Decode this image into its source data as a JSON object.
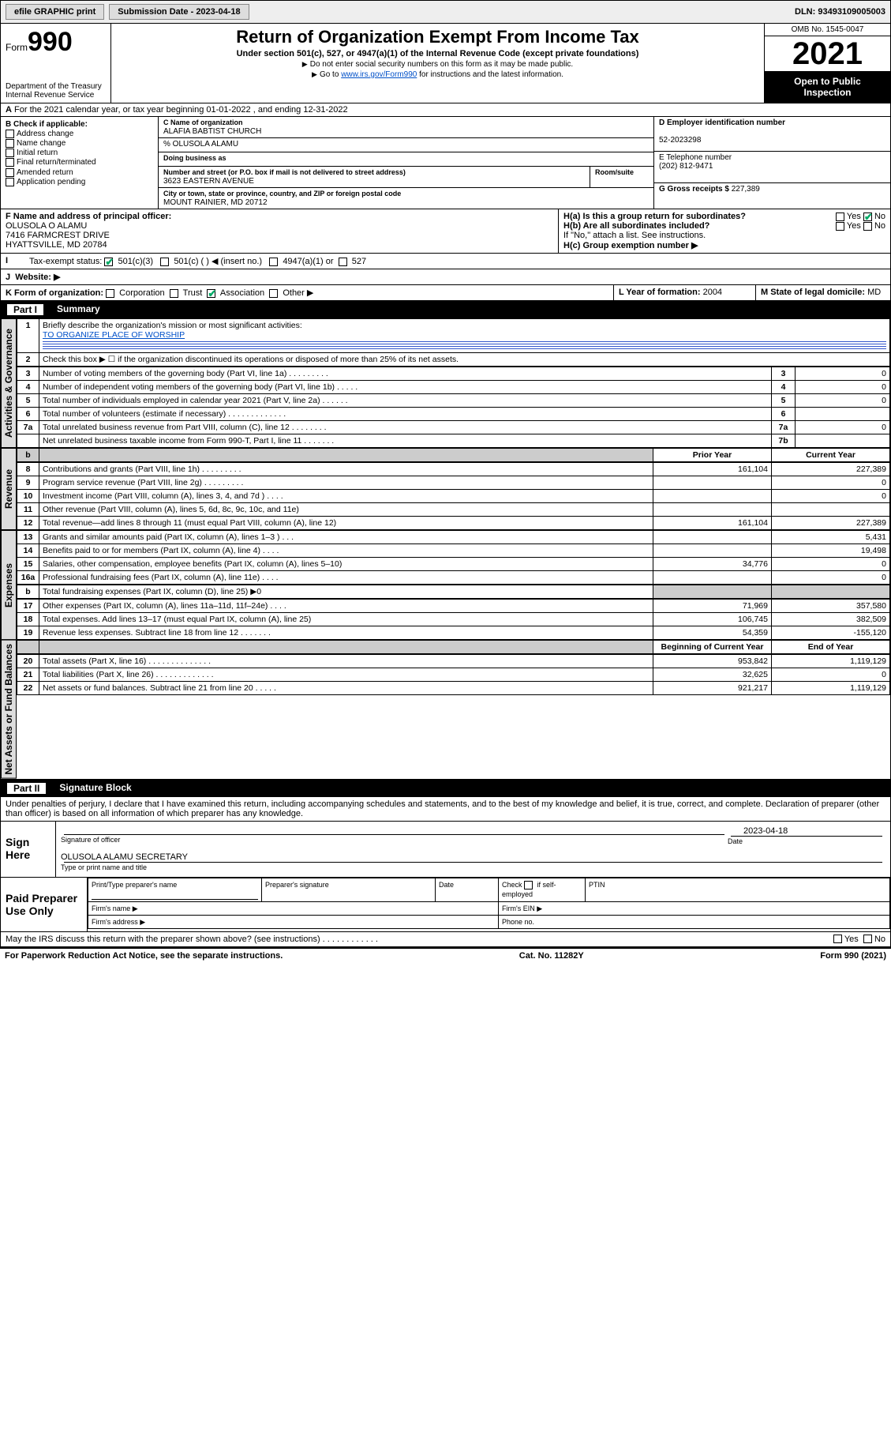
{
  "topbar": {
    "efile_label": "efile GRAPHIC print",
    "submission_label": "Submission Date - 2023-04-18",
    "dln_label": "DLN: 93493109005003"
  },
  "header": {
    "form_word": "Form",
    "form_num": "990",
    "title": "Return of Organization Exempt From Income Tax",
    "subtitle": "Under section 501(c), 527, or 4947(a)(1) of the Internal Revenue Code (except private foundations)",
    "note1": "Do not enter social security numbers on this form as it may be made public.",
    "note2_pre": "Go to ",
    "note2_link": "www.irs.gov/Form990",
    "note2_post": " for instructions and the latest information.",
    "dept": "Department of the Treasury",
    "irs": "Internal Revenue Service",
    "omb": "OMB No. 1545-0047",
    "year": "2021",
    "inspect1": "Open to Public",
    "inspect2": "Inspection"
  },
  "row_a": "For the 2021 calendar year, or tax year beginning 01-01-2022  , and ending 12-31-2022",
  "section_b": {
    "title": "B Check if applicable:",
    "items": [
      "Address change",
      "Name change",
      "Initial return",
      "Final return/terminated",
      "Amended return",
      "Application pending"
    ]
  },
  "section_c": {
    "name_lbl": "C Name of organization",
    "name": "ALAFIA BABTIST CHURCH",
    "care_of": "% OLUSOLA ALAMU",
    "dba_lbl": "Doing business as",
    "street_lbl": "Number and street (or P.O. box if mail is not delivered to street address)",
    "room_lbl": "Room/suite",
    "street": "3623 EASTERN AVENUE",
    "city_lbl": "City or town, state or province, country, and ZIP or foreign postal code",
    "city": "MOUNT RAINIER, MD  20712"
  },
  "section_d": {
    "lbl": "D Employer identification number",
    "val": "52-2023298"
  },
  "section_e": {
    "lbl": "E Telephone number",
    "val": "(202) 812-9471"
  },
  "section_g": {
    "lbl": "G Gross receipts $",
    "val": "227,389"
  },
  "section_f": {
    "lbl": "F Name and address of principal officer:",
    "l1": "OLUSOLA O ALAMU",
    "l2": "7416 FARMCREST DRIVE",
    "l3": "HYATTSVILLE, MD  20784"
  },
  "section_h": {
    "ha": "H(a)  Is this a group return for subordinates?",
    "hb": "H(b)  Are all subordinates included?",
    "hb_note": "If \"No,\" attach a list. See instructions.",
    "hc": "H(c)  Group exemption number ▶",
    "yes": "Yes",
    "no": "No"
  },
  "row_i": {
    "lbl": "Tax-exempt status:",
    "o1": "501(c)(3)",
    "o2": "501(c) (  ) ◀ (insert no.)",
    "o3": "4947(a)(1) or",
    "o4": "527"
  },
  "row_j": "Website: ▶",
  "row_k": {
    "lbl": "K Form of organization:",
    "o1": "Corporation",
    "o2": "Trust",
    "o3": "Association",
    "o4": "Other ▶"
  },
  "row_l": {
    "lbl": "L Year of formation:",
    "val": "2004"
  },
  "row_m": {
    "lbl": "M State of legal domicile:",
    "val": "MD"
  },
  "part1": {
    "num": "Part I",
    "title": "Summary"
  },
  "summary": {
    "q1": "Briefly describe the organization's mission or most significant activities:",
    "q1_val": "TO ORGANIZE PLACE OF WORSHIP",
    "q2": "Check this box ▶ ☐  if the organization discontinued its operations or disposed of more than 25% of its net assets.",
    "rows_gov": [
      {
        "n": "3",
        "desc": "Number of voting members of the governing body (Part VI, line 1a)  .  .  .  .  .  .  .  .  .",
        "box": "3",
        "val": "0"
      },
      {
        "n": "4",
        "desc": "Number of independent voting members of the governing body (Part VI, line 1b)  .  .  .  .  .",
        "box": "4",
        "val": "0"
      },
      {
        "n": "5",
        "desc": "Total number of individuals employed in calendar year 2021 (Part V, line 2a)  .  .  .  .  .  .",
        "box": "5",
        "val": "0"
      },
      {
        "n": "6",
        "desc": "Total number of volunteers (estimate if necessary)  .  .  .  .  .  .  .  .  .  .  .  .  .",
        "box": "6",
        "val": ""
      },
      {
        "n": "7a",
        "desc": "Total unrelated business revenue from Part VIII, column (C), line 12  .  .  .  .  .  .  .  .",
        "box": "7a",
        "val": "0"
      },
      {
        "n": "",
        "desc": "Net unrelated business taxable income from Form 990-T, Part I, line 11  .  .  .  .  .  .  .",
        "box": "7b",
        "val": ""
      }
    ],
    "col_hdr_b": "b",
    "hdr_prior": "Prior Year",
    "hdr_current": "Current Year",
    "revenue": [
      {
        "n": "8",
        "desc": "Contributions and grants (Part VIII, line 1h)  .  .  .  .  .  .  .  .  .",
        "prior": "161,104",
        "cur": "227,389"
      },
      {
        "n": "9",
        "desc": "Program service revenue (Part VIII, line 2g)  .  .  .  .  .  .  .  .  .",
        "prior": "",
        "cur": "0"
      },
      {
        "n": "10",
        "desc": "Investment income (Part VIII, column (A), lines 3, 4, and 7d )  .  .  .  .",
        "prior": "",
        "cur": "0"
      },
      {
        "n": "11",
        "desc": "Other revenue (Part VIII, column (A), lines 5, 6d, 8c, 9c, 10c, and 11e)",
        "prior": "",
        "cur": ""
      },
      {
        "n": "12",
        "desc": "Total revenue—add lines 8 through 11 (must equal Part VIII, column (A), line 12)",
        "prior": "161,104",
        "cur": "227,389"
      }
    ],
    "expenses": [
      {
        "n": "13",
        "desc": "Grants and similar amounts paid (Part IX, column (A), lines 1–3 )  .  .  .",
        "prior": "",
        "cur": "5,431"
      },
      {
        "n": "14",
        "desc": "Benefits paid to or for members (Part IX, column (A), line 4)  .  .  .  .",
        "prior": "",
        "cur": "19,498"
      },
      {
        "n": "15",
        "desc": "Salaries, other compensation, employee benefits (Part IX, column (A), lines 5–10)",
        "prior": "34,776",
        "cur": "0"
      },
      {
        "n": "16a",
        "desc": "Professional fundraising fees (Part IX, column (A), line 11e)  .  .  .  .",
        "prior": "",
        "cur": "0"
      }
    ],
    "line_b_lbl": "b",
    "line_b": "Total fundraising expenses (Part IX, column (D), line 25) ▶0",
    "expenses2": [
      {
        "n": "17",
        "desc": "Other expenses (Part IX, column (A), lines 11a–11d, 11f–24e)  .  .  .  .",
        "prior": "71,969",
        "cur": "357,580"
      },
      {
        "n": "18",
        "desc": "Total expenses. Add lines 13–17 (must equal Part IX, column (A), line 25)",
        "prior": "106,745",
        "cur": "382,509"
      },
      {
        "n": "19",
        "desc": "Revenue less expenses. Subtract line 18 from line 12  .  .  .  .  .  .  .",
        "prior": "54,359",
        "cur": "-155,120"
      }
    ],
    "hdr_begin": "Beginning of Current Year",
    "hdr_end": "End of Year",
    "netassets": [
      {
        "n": "20",
        "desc": "Total assets (Part X, line 16)  .  .  .  .  .  .  .  .  .  .  .  .  .  .",
        "prior": "953,842",
        "cur": "1,119,129"
      },
      {
        "n": "21",
        "desc": "Total liabilities (Part X, line 26)  .  .  .  .  .  .  .  .  .  .  .  .  .",
        "prior": "32,625",
        "cur": "0"
      },
      {
        "n": "22",
        "desc": "Net assets or fund balances. Subtract line 21 from line 20  .  .  .  .  .",
        "prior": "921,217",
        "cur": "1,119,129"
      }
    ]
  },
  "vert_labels": {
    "gov": "Activities & Governance",
    "rev": "Revenue",
    "exp": "Expenses",
    "net": "Net Assets or Fund Balances"
  },
  "part2": {
    "num": "Part II",
    "title": "Signature Block"
  },
  "penalties": "Under penalties of perjury, I declare that I have examined this return, including accompanying schedules and statements, and to the best of my knowledge and belief, it is true, correct, and complete. Declaration of preparer (other than officer) is based on all information of which preparer has any knowledge.",
  "sign": {
    "here": "Sign Here",
    "sig_lbl": "Signature of officer",
    "date_lbl": "Date",
    "date_val": "2023-04-18",
    "name": "OLUSOLA ALAMU  SECRETARY",
    "name_lbl": "Type or print name and title"
  },
  "paid": {
    "title": "Paid Preparer Use Only",
    "c1": "Print/Type preparer's name",
    "c2": "Preparer's signature",
    "c3": "Date",
    "c4a": "Check",
    "c4b": "if self-employed",
    "c5": "PTIN",
    "firm_name": "Firm's name  ▶",
    "firm_ein": "Firm's EIN ▶",
    "firm_addr": "Firm's address ▶",
    "phone": "Phone no."
  },
  "discuss": "May the IRS discuss this return with the preparer shown above? (see instructions)  .  .  .  .  .  .  .  .  .  .  .  .",
  "footer": {
    "left": "For Paperwork Reduction Act Notice, see the separate instructions.",
    "mid": "Cat. No. 11282Y",
    "right": "Form 990 (2021)"
  },
  "colors": {
    "link": "#0050c8",
    "check": "#0a6e3a"
  }
}
